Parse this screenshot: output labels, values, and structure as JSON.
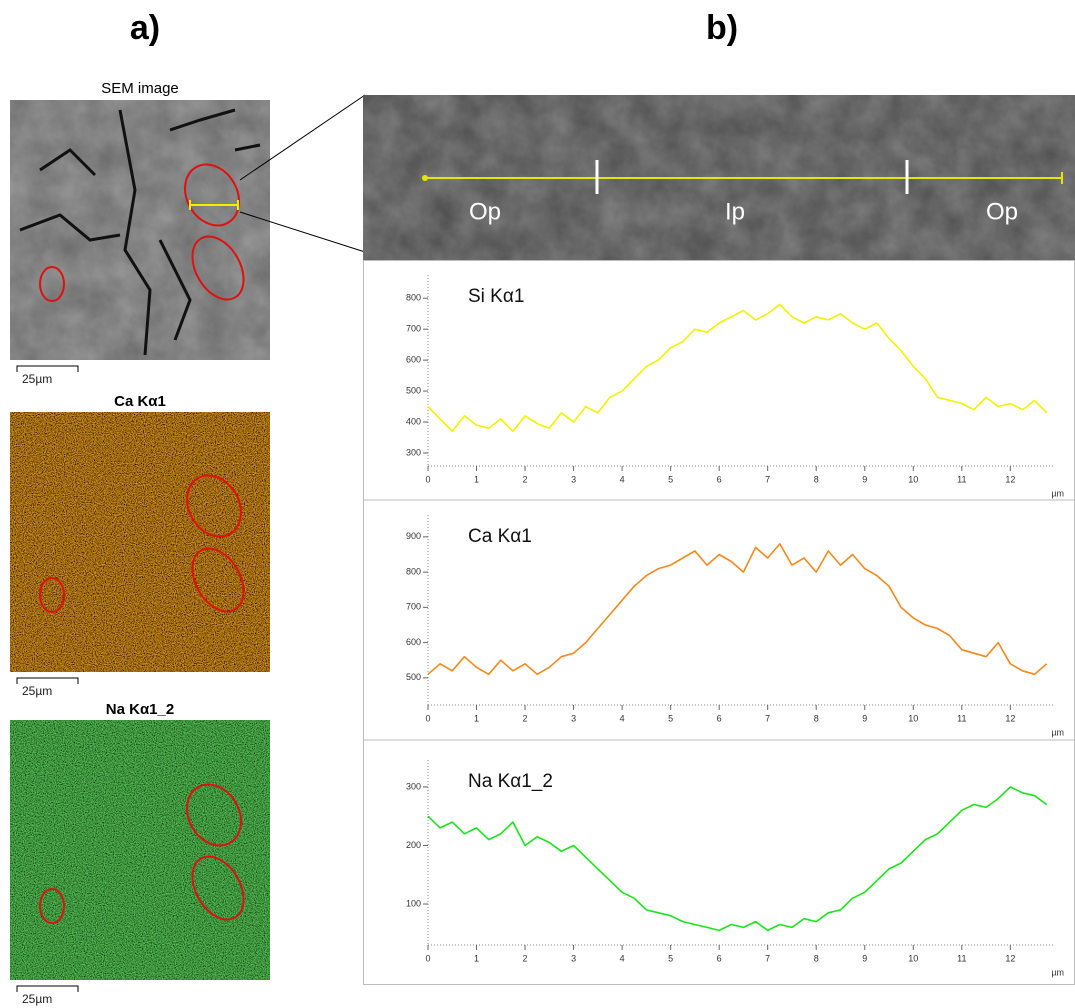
{
  "panel_labels": [
    "a)",
    "b)"
  ],
  "images": [
    {
      "title": "SEM image",
      "scale_bar": "25µm"
    },
    {
      "title": "Ca Kα1",
      "scale_bar": "25µm"
    },
    {
      "title": "Na Kα1_2",
      "scale_bar": "25µm"
    }
  ],
  "line_scan": {
    "labels": [
      "Op",
      "Ip",
      "Op"
    ]
  },
  "chart_data": [
    {
      "type": "line",
      "x_label": "µm",
      "x": [
        0,
        0.25,
        0.5,
        0.75,
        1,
        1.25,
        1.5,
        1.75,
        2,
        2.25,
        2.5,
        2.75,
        3,
        3.25,
        3.5,
        3.75,
        4,
        4.25,
        4.5,
        4.75,
        5,
        5.25,
        5.5,
        5.75,
        6,
        6.25,
        6.5,
        6.75,
        7,
        7.25,
        7.5,
        7.75,
        8,
        8.25,
        8.5,
        8.75,
        9,
        9.25,
        9.5,
        9.75,
        10,
        10.25,
        10.5,
        10.75,
        11,
        11.25,
        11.5,
        11.75,
        12,
        12.25,
        12.5,
        12.75
      ],
      "series": [
        {
          "name": "Si Kα1",
          "color": "#f2f200",
          "values": [
            450,
            410,
            370,
            420,
            390,
            380,
            410,
            370,
            420,
            395,
            380,
            430,
            400,
            450,
            430,
            480,
            500,
            540,
            580,
            600,
            640,
            660,
            700,
            690,
            720,
            740,
            760,
            730,
            750,
            780,
            740,
            720,
            740,
            730,
            750,
            720,
            700,
            720,
            670,
            630,
            580,
            540,
            480,
            470,
            460,
            440,
            480,
            450,
            460,
            440,
            470,
            430
          ]
        }
      ],
      "xlim": [
        0,
        12.9
      ],
      "ylim": [
        258,
        875
      ],
      "xticks": [
        0,
        1,
        2,
        3,
        4,
        5,
        6,
        7,
        8,
        9,
        10,
        11,
        12
      ],
      "yticks": [
        300,
        400,
        500,
        600,
        700,
        800
      ]
    },
    {
      "type": "line",
      "x_label": "µm",
      "x": [
        0,
        0.25,
        0.5,
        0.75,
        1,
        1.25,
        1.5,
        1.75,
        2,
        2.25,
        2.5,
        2.75,
        3,
        3.25,
        3.5,
        3.75,
        4,
        4.25,
        4.5,
        4.75,
        5,
        5.25,
        5.5,
        5.75,
        6,
        6.25,
        6.5,
        6.75,
        7,
        7.25,
        7.5,
        7.75,
        8,
        8.25,
        8.5,
        8.75,
        9,
        9.25,
        9.5,
        9.75,
        10,
        10.25,
        10.5,
        10.75,
        11,
        11.25,
        11.5,
        11.75,
        12,
        12.25,
        12.5,
        12.75
      ],
      "series": [
        {
          "name": "Ca Kα1",
          "color": "#f7881c",
          "values": [
            510,
            540,
            520,
            560,
            530,
            510,
            550,
            520,
            540,
            510,
            530,
            560,
            570,
            600,
            640,
            680,
            720,
            760,
            790,
            810,
            820,
            840,
            860,
            820,
            850,
            830,
            800,
            870,
            840,
            880,
            820,
            840,
            800,
            860,
            820,
            850,
            810,
            790,
            760,
            700,
            670,
            650,
            640,
            620,
            580,
            570,
            560,
            600,
            540,
            520,
            510,
            540
          ]
        }
      ],
      "xlim": [
        0,
        12.9
      ],
      "ylim": [
        423,
        962
      ],
      "xticks": [
        0,
        1,
        2,
        3,
        4,
        5,
        6,
        7,
        8,
        9,
        10,
        11,
        12
      ],
      "yticks": [
        500,
        600,
        700,
        800,
        900
      ]
    },
    {
      "type": "line",
      "x_label": "µm",
      "x": [
        0,
        0.25,
        0.5,
        0.75,
        1,
        1.25,
        1.5,
        1.75,
        2,
        2.25,
        2.5,
        2.75,
        3,
        3.25,
        3.5,
        3.75,
        4,
        4.25,
        4.5,
        4.75,
        5,
        5.25,
        5.5,
        5.75,
        6,
        6.25,
        6.5,
        6.75,
        7,
        7.25,
        7.5,
        7.75,
        8,
        8.25,
        8.5,
        8.75,
        9,
        9.25,
        9.5,
        9.75,
        10,
        10.25,
        10.5,
        10.75,
        11,
        11.25,
        11.5,
        11.75,
        12,
        12.25,
        12.5,
        12.75
      ],
      "series": [
        {
          "name": "Na Kα1_2",
          "color": "#19e619",
          "values": [
            250,
            230,
            240,
            220,
            230,
            210,
            220,
            240,
            200,
            215,
            205,
            190,
            200,
            180,
            160,
            140,
            120,
            110,
            90,
            85,
            80,
            70,
            65,
            60,
            55,
            65,
            60,
            70,
            55,
            65,
            60,
            75,
            70,
            85,
            90,
            110,
            120,
            140,
            160,
            170,
            190,
            210,
            220,
            240,
            260,
            270,
            265,
            280,
            300,
            290,
            285,
            270
          ]
        }
      ],
      "xlim": [
        0,
        12.9
      ],
      "ylim": [
        30,
        346
      ],
      "xticks": [
        0,
        1,
        2,
        3,
        4,
        5,
        6,
        7,
        8,
        9,
        10,
        11,
        12
      ],
      "yticks": [
        100,
        200,
        300
      ]
    }
  ]
}
